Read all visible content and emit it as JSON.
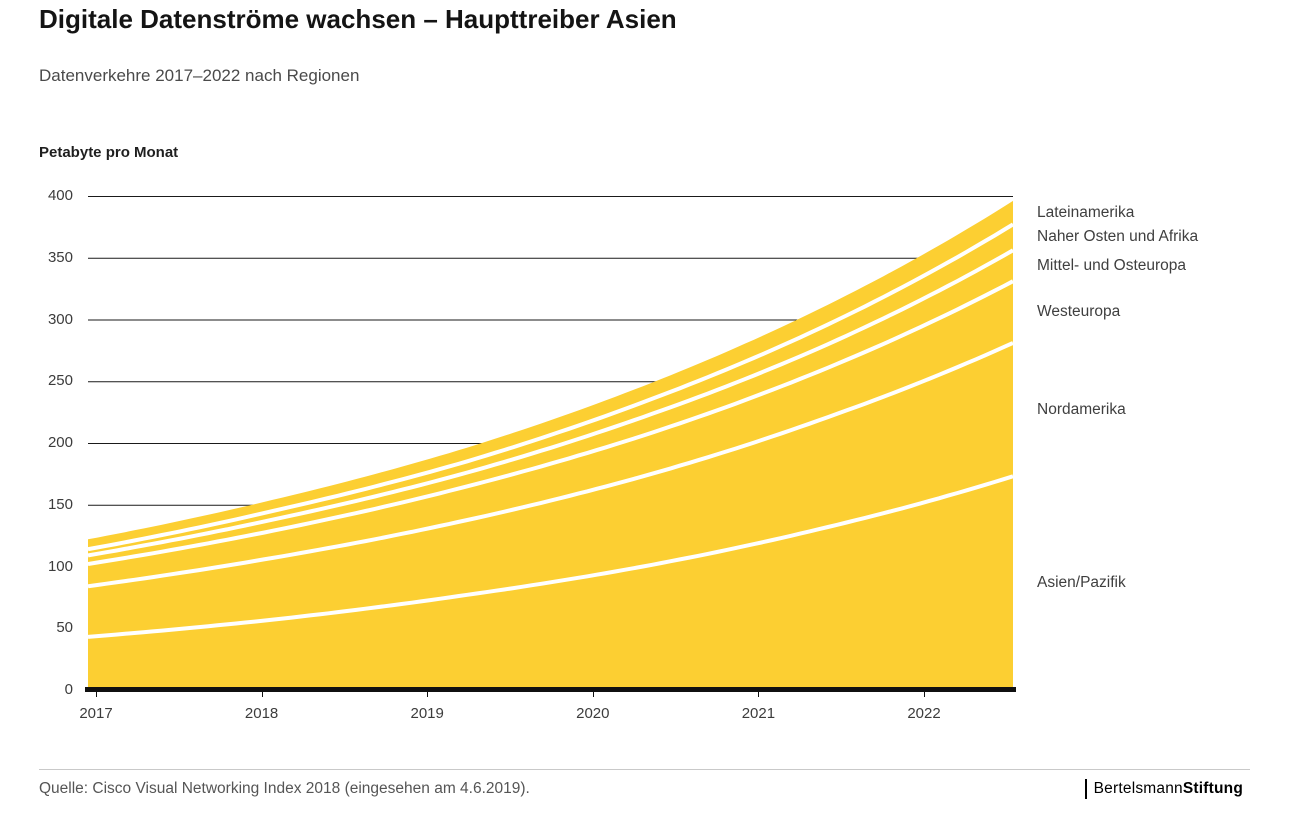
{
  "chart_data": {
    "type": "area",
    "stacked": true,
    "title": "Digitale Datenströme wachsen – Haupttreiber Asien",
    "subtitle": "Datenverkehre 2017–2022 nach Regionen",
    "unit_label": "Petabyte pro Monat",
    "x_labels": [
      "2017",
      "2018",
      "2019",
      "2020",
      "2021",
      "2022"
    ],
    "ylim": [
      0,
      400
    ],
    "yticks": [
      0,
      50,
      100,
      150,
      200,
      250,
      300,
      350,
      400
    ],
    "grid": true,
    "legend_position": "right",
    "series": [
      {
        "name": "Asien/Pazifik",
        "values": [
          43,
          57,
          76,
          100,
          132,
          173
        ]
      },
      {
        "name": "Nordamerika",
        "values": [
          41,
          50,
          60,
          73,
          89,
          108
        ]
      },
      {
        "name": "Westeuropa",
        "values": [
          18,
          22,
          27,
          33,
          40,
          50
        ]
      },
      {
        "name": "Mittel- und Osteuropa",
        "values": [
          7,
          9,
          11,
          15,
          19,
          25
        ]
      },
      {
        "name": "Naher Osten und Afrika",
        "values": [
          5,
          7,
          9,
          12,
          16,
          21
        ]
      },
      {
        "name": "Lateinamerika",
        "values": [
          8,
          9,
          11,
          13,
          16,
          19
        ]
      }
    ],
    "totals": [
      122,
      154,
      194,
      246,
      312,
      396
    ],
    "area_color": "#FCCF32",
    "separator_color": "#FFFFFF",
    "gridline_color": "#1a1a1a"
  },
  "footer": {
    "source": "Quelle: Cisco Visual Networking Index 2018 (eingesehen am 4.6.2019).",
    "brand": {
      "regular": "Bertelsmann",
      "bold": "Stiftung"
    }
  }
}
